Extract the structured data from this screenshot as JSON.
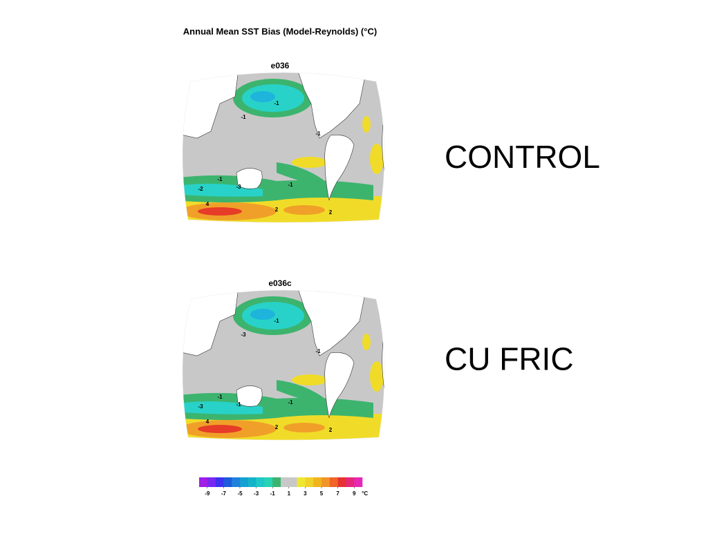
{
  "title": "Annual Mean SST Bias (Model-Reynolds) (°C)",
  "panels": [
    {
      "name": "e036",
      "label": "CONTROL",
      "contour_labels": [
        "-1",
        "-1",
        "-1",
        "-3",
        "-2",
        "-1",
        "4",
        "2",
        "2",
        "-1"
      ]
    },
    {
      "name": "e036c",
      "label": "CU FRIC",
      "contour_labels": [
        "-1",
        "-3",
        "-1",
        "-1",
        "-3",
        "-1",
        "4",
        "2",
        "2",
        "-1"
      ]
    }
  ],
  "colorbar": {
    "lim": [
      -10,
      10
    ],
    "colors": [
      "#a01ee6",
      "#7828f0",
      "#3c32f0",
      "#1e5adc",
      "#1e82dc",
      "#14a0d2",
      "#14b4c8",
      "#1ec8c8",
      "#28d2b4",
      "#3cb46e",
      "#c8c8c8",
      "#c8c8c8",
      "#f0e632",
      "#f0d228",
      "#f0b41e",
      "#f09628",
      "#f06428",
      "#e63232",
      "#e6287a",
      "#e628b4"
    ],
    "ticks": [
      -9,
      -7,
      -5,
      -3,
      -1,
      1,
      3,
      5,
      7,
      9
    ],
    "unit": "°C"
  }
}
